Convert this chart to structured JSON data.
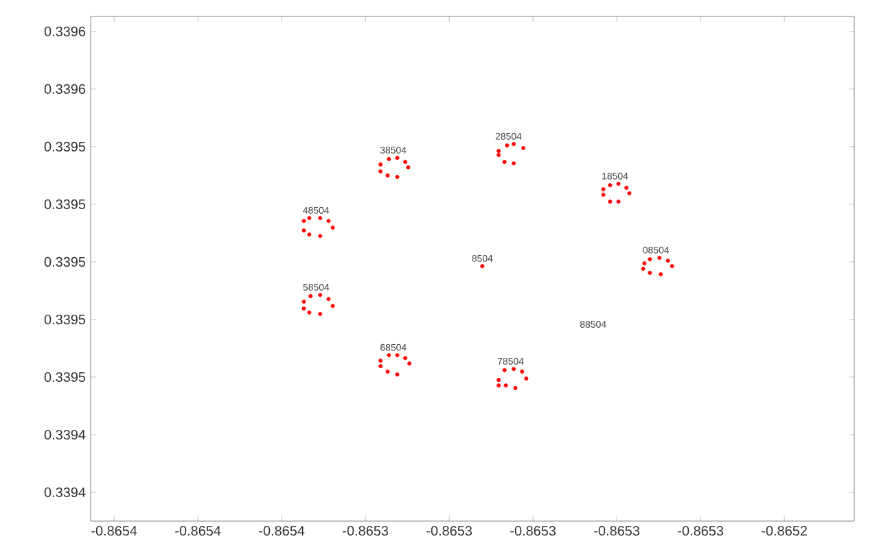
{
  "chart_data": {
    "type": "scatter",
    "marker": "circle",
    "grid": false,
    "xlim": [
      -0.8654056,
      -0.8652233
    ],
    "ylim": [
      0.33941,
      0.3395852
    ],
    "xticks": [
      {
        "value": -0.8654,
        "label": "-0.8654"
      },
      {
        "value": -0.86538,
        "label": "-0.8654"
      },
      {
        "value": -0.86536,
        "label": "-0.8654"
      },
      {
        "value": -0.86534,
        "label": "-0.8653"
      },
      {
        "value": -0.86532,
        "label": "-0.8653"
      },
      {
        "value": -0.8653,
        "label": "-0.8653"
      },
      {
        "value": -0.86528,
        "label": "-0.8653"
      },
      {
        "value": -0.86526,
        "label": "-0.8653"
      },
      {
        "value": -0.86524,
        "label": "-0.8652"
      }
    ],
    "yticks": [
      {
        "value": 0.33942,
        "label": "0.3394"
      },
      {
        "value": 0.33944,
        "label": "0.3394"
      },
      {
        "value": 0.33946,
        "label": "0.3395"
      },
      {
        "value": 0.33948,
        "label": "0.3395"
      },
      {
        "value": 0.3395,
        "label": "0.3395"
      },
      {
        "value": 0.33952,
        "label": "0.3395"
      },
      {
        "value": 0.33954,
        "label": "0.3395"
      },
      {
        "value": 0.33956,
        "label": "0.3396"
      },
      {
        "value": 0.33958,
        "label": "0.3396"
      }
    ],
    "series": [
      {
        "name": "38504",
        "color": "#ff0000",
        "x": [
          -0.8653364,
          -0.8653344,
          -0.8653324,
          -0.8653305,
          -0.8653298,
          -0.8653364,
          -0.8653347,
          -0.8653324
        ],
        "values": [
          0.3395338,
          0.3395357,
          0.3395361,
          0.3395347,
          0.3395328,
          0.3395314,
          0.33953,
          0.3395295
        ]
      },
      {
        "name": "28504",
        "color": "#ff0000",
        "x": [
          -0.8653082,
          -0.8653082,
          -0.8653062,
          -0.8653046,
          -0.8653023,
          -0.8653068,
          -0.8653046
        ],
        "values": [
          0.3395385,
          0.3395371,
          0.3395404,
          0.3395409,
          0.3395395,
          0.3395347,
          0.3395342
        ]
      },
      {
        "name": "18504",
        "color": "#ff0000",
        "x": [
          -0.8652832,
          -0.8652832,
          -0.8652816,
          -0.8652796,
          -0.8652777,
          -0.865277,
          -0.8652816,
          -0.8652796
        ],
        "values": [
          0.3395252,
          0.3395233,
          0.3395266,
          0.3395271,
          0.3395257,
          0.3395238,
          0.3395209,
          0.3395209
        ]
      },
      {
        "name": "08504",
        "color": "#ff0000",
        "x": [
          -0.8652734,
          -0.8652737,
          -0.8652721,
          -0.8652698,
          -0.8652678,
          -0.8652668,
          -0.8652721,
          -0.8652695
        ],
        "values": [
          0.3394995,
          0.3394976,
          0.3395009,
          0.3395014,
          0.3395004,
          0.3394985,
          0.3394962,
          0.3394957
        ]
      },
      {
        "name": "8504",
        "color": "#ff0000",
        "x": [
          -0.8653121
        ],
        "values": [
          0.3394985
        ]
      },
      {
        "name": "78504",
        "color": "#ff0000",
        "x": [
          -0.8653082,
          -0.8653082,
          -0.8653068,
          -0.8653046,
          -0.8653026,
          -0.8653016,
          -0.8653065,
          -0.8653042
        ],
        "values": [
          0.339459,
          0.3394571,
          0.3394624,
          0.3394628,
          0.3394619,
          0.3394595,
          0.3394571,
          0.3394562
        ]
      },
      {
        "name": "68504",
        "color": "#ff0000",
        "x": [
          -0.8653364,
          -0.8653364,
          -0.8653344,
          -0.8653324,
          -0.8653305,
          -0.8653295,
          -0.8653347,
          -0.8653324
        ],
        "values": [
          0.3394657,
          0.3394638,
          0.3394676,
          0.3394676,
          0.3394666,
          0.3394647,
          0.3394619,
          0.3394609
        ]
      },
      {
        "name": "58504",
        "color": "#ff0000",
        "x": [
          -0.8653547,
          -0.8653547,
          -0.8653531,
          -0.8653508,
          -0.8653488,
          -0.8653478,
          -0.8653534,
          -0.8653508
        ],
        "values": [
          0.3394862,
          0.3394838,
          0.3394881,
          0.3394885,
          0.3394871,
          0.3394847,
          0.3394824,
          0.3394819
        ]
      },
      {
        "name": "48504",
        "color": "#ff0000",
        "x": [
          -0.8653547,
          -0.8653547,
          -0.8653534,
          -0.8653508,
          -0.8653488,
          -0.8653478,
          -0.8653534,
          -0.8653508
        ],
        "values": [
          0.3395142,
          0.3395109,
          0.3395152,
          0.3395152,
          0.3395142,
          0.3395119,
          0.3395095,
          0.339509
        ]
      }
    ],
    "annotations": [
      "88504"
    ]
  }
}
